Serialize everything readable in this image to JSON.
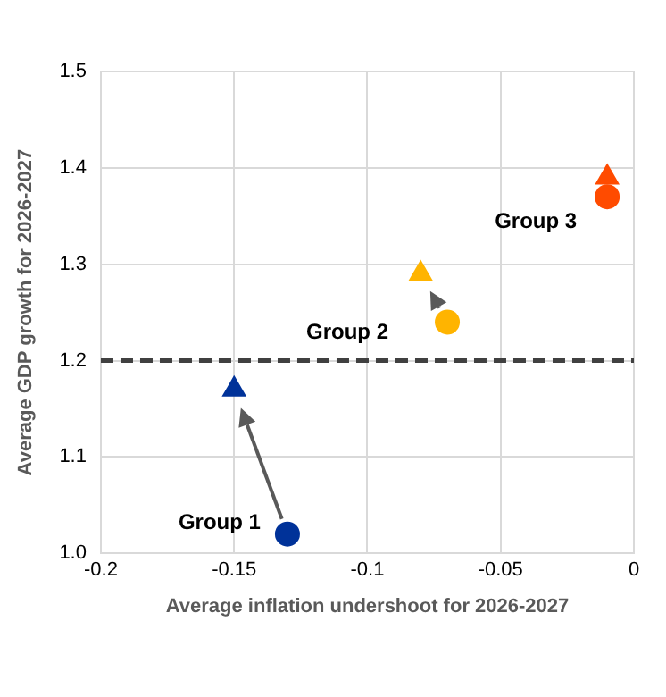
{
  "chart_data": {
    "type": "scatter",
    "xlabel": "Average inflation undershoot for 2026-2027",
    "ylabel": "Average GDP growth for 2026-2027",
    "series": [
      {
        "color": "#003299",
        "marker": "circle",
        "x": [
          -0.13
        ],
        "values": [
          1.02
        ]
      },
      {
        "color": "#003299",
        "marker": "triangle",
        "x": [
          -0.15
        ],
        "values": [
          1.17
        ]
      },
      {
        "color": "#ffb400",
        "marker": "circle",
        "x": [
          -0.07
        ],
        "values": [
          1.24
        ]
      },
      {
        "color": "#ffb400",
        "marker": "triangle",
        "x": [
          -0.08
        ],
        "values": [
          1.29
        ]
      },
      {
        "color": "#ff4b00",
        "marker": "circle",
        "x": [
          -0.01
        ],
        "values": [
          1.37
        ]
      },
      {
        "color": "#ff4b00",
        "marker": "triangle",
        "x": [
          -0.01
        ],
        "values": [
          1.39
        ]
      }
    ],
    "xlim": [
      -0.2,
      0
    ],
    "xticks": [
      -0.2,
      -0.15,
      -0.1,
      -0.05,
      0
    ],
    "ylim": [
      1.0,
      1.5
    ],
    "yticks": [
      {
        "value": 1.0,
        "label": "1.0"
      },
      1.1,
      1.2,
      1.3,
      1.4,
      1.5
    ],
    "grid": true,
    "legend": false,
    "ref_lines": [
      {
        "axis": "y",
        "value": 1.2,
        "color": "#404040",
        "line_style": "dashed"
      }
    ],
    "annotations": [
      "Group 1",
      "Group 2",
      "Group 3"
    ]
  }
}
